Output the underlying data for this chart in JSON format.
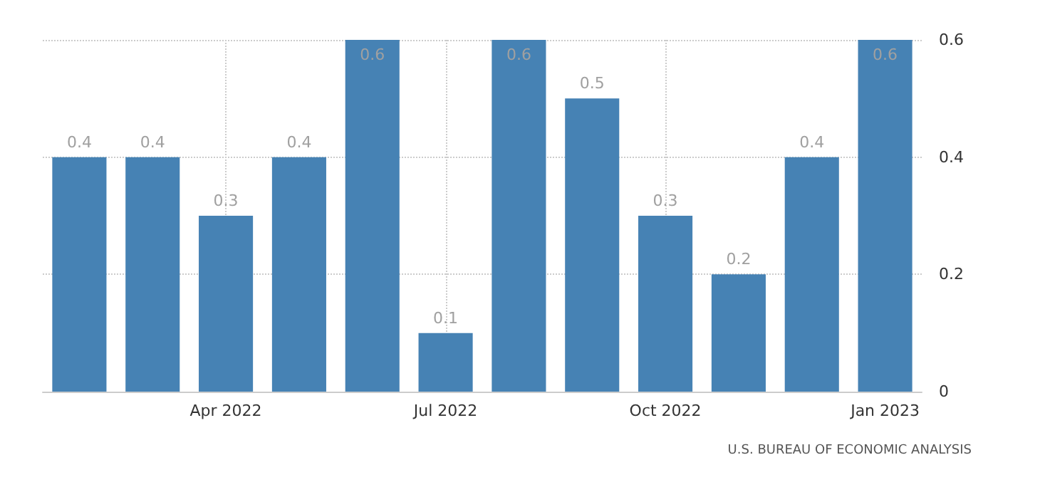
{
  "chart_data": {
    "type": "bar",
    "categories": [
      null,
      null,
      "Apr 2022",
      null,
      null,
      "Jul 2022",
      null,
      null,
      "Oct 2022",
      null,
      null,
      "Jan 2023"
    ],
    "values": [
      0.4,
      0.4,
      0.3,
      0.4,
      0.6,
      0.1,
      0.6,
      0.5,
      0.3,
      0.2,
      0.4,
      0.6
    ],
    "color": "#4682b4",
    "ylim": [
      0,
      0.6
    ],
    "yticks": [
      0,
      0.2,
      0.4,
      0.6
    ],
    "grid": true,
    "data_labels": true,
    "annotations": [
      "U.S. BUREAU OF ECONOMIC ANALYSIS"
    ]
  }
}
